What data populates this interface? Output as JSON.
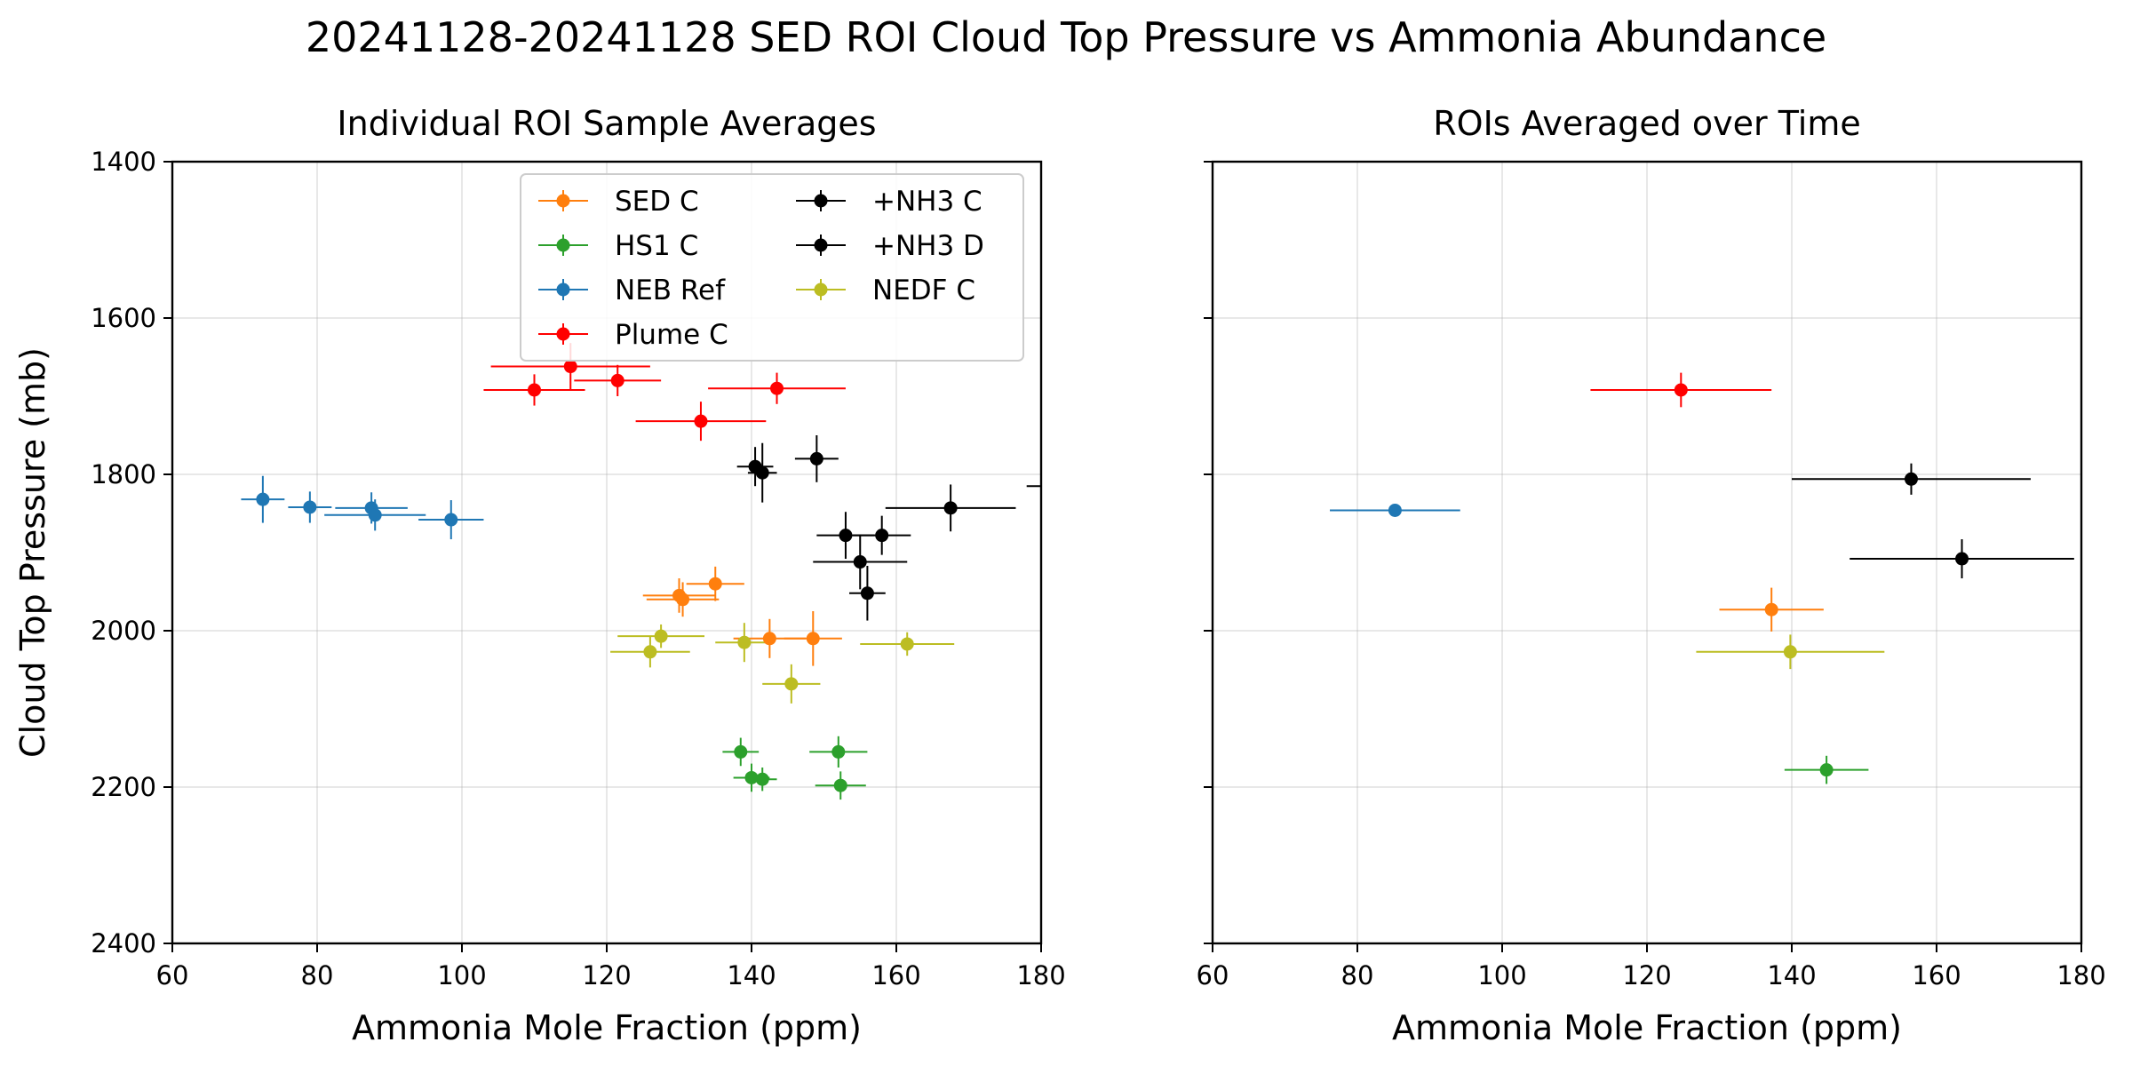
{
  "figure_title": "20241128-20241128 SED ROI Cloud Top Pressure vs Ammonia Abundance",
  "chart_data": [
    {
      "type": "scatter",
      "title": "Individual ROI Sample Averages",
      "xlabel": "Ammonia Mole Fraction (ppm)",
      "ylabel": "Cloud Top Pressure (mb)",
      "xlim": [
        60,
        180
      ],
      "ylim": [
        2400,
        1400
      ],
      "y_inverted": true,
      "xticks": [
        60,
        80,
        100,
        120,
        140,
        160,
        180
      ],
      "yticks": [
        1400,
        1600,
        1800,
        2000,
        2200,
        2400
      ],
      "grid": true,
      "error_bars": true,
      "legend": {
        "placement": "top-right",
        "columns": 2
      },
      "legend_entries": [
        "SED C",
        "HS1 C",
        "NEB Ref",
        "Plume C",
        "+NH3 C",
        "+NH3 D",
        "NEDF C"
      ],
      "series": [
        {
          "name": "SED C",
          "color": "#ff7f0e",
          "points": [
            {
              "x": 130,
              "y": 1955,
              "xerr": 5,
              "yerr": 22
            },
            {
              "x": 130.5,
              "y": 1960,
              "xerr": 5,
              "yerr": 22
            },
            {
              "x": 135,
              "y": 1940,
              "xerr": 4,
              "yerr": 22
            },
            {
              "x": 142.5,
              "y": 2010,
              "xerr": 5,
              "yerr": 25
            },
            {
              "x": 148.5,
              "y": 2010,
              "xerr": 4,
              "yerr": 35
            }
          ]
        },
        {
          "name": "HS1 C",
          "color": "#2ca02c",
          "points": [
            {
              "x": 138.5,
              "y": 2155,
              "xerr": 2.5,
              "yerr": 18
            },
            {
              "x": 140,
              "y": 2188,
              "xerr": 2.5,
              "yerr": 18
            },
            {
              "x": 141.5,
              "y": 2190,
              "xerr": 2,
              "yerr": 15
            },
            {
              "x": 152,
              "y": 2155,
              "xerr": 4,
              "yerr": 20
            },
            {
              "x": 152.3,
              "y": 2198,
              "xerr": 3.5,
              "yerr": 18
            }
          ]
        },
        {
          "name": "NEB Ref",
          "color": "#1f77b4",
          "points": [
            {
              "x": 72.5,
              "y": 1832,
              "xerr": 3,
              "yerr": 30
            },
            {
              "x": 79,
              "y": 1842,
              "xerr": 3,
              "yerr": 20
            },
            {
              "x": 87.5,
              "y": 1843,
              "xerr": 5,
              "yerr": 20
            },
            {
              "x": 88,
              "y": 1852,
              "xerr": 7,
              "yerr": 20
            },
            {
              "x": 98.5,
              "y": 1858,
              "xerr": 4.5,
              "yerr": 25
            }
          ]
        },
        {
          "name": "Plume C",
          "color": "#ff0000",
          "points": [
            {
              "x": 110,
              "y": 1692,
              "xerr": 7,
              "yerr": 20
            },
            {
              "x": 115,
              "y": 1662,
              "xerr": 11,
              "yerr": 30
            },
            {
              "x": 121.5,
              "y": 1680,
              "xerr": 6,
              "yerr": 20
            },
            {
              "x": 133,
              "y": 1732,
              "xerr": 9,
              "yerr": 25
            },
            {
              "x": 143.5,
              "y": 1690,
              "xerr": 9.5,
              "yerr": 20
            }
          ]
        },
        {
          "name": "+NH3 C",
          "color": "#000000",
          "points": [
            {
              "x": 140.5,
              "y": 1790,
              "xerr": 2.5,
              "yerr": 25
            },
            {
              "x": 141.5,
              "y": 1798,
              "xerr": 2,
              "yerr": 38
            },
            {
              "x": 149,
              "y": 1780,
              "xerr": 3,
              "yerr": 30
            },
            {
              "x": 153,
              "y": 1878,
              "xerr": 4,
              "yerr": 30
            },
            {
              "x": 155,
              "y": 1912,
              "xerr": 6.5,
              "yerr": 35
            }
          ]
        },
        {
          "name": "+NH3 D",
          "color": "#000000",
          "points": [
            {
              "x": 156,
              "y": 1952,
              "xerr": 2.5,
              "yerr": 35
            },
            {
              "x": 158,
              "y": 1878,
              "xerr": 4,
              "yerr": 25
            },
            {
              "x": 167.5,
              "y": 1843,
              "xerr": 9,
              "yerr": 30
            },
            {
              "x": 185,
              "y": 1815,
              "xerr": 7,
              "yerr": 0
            }
          ]
        },
        {
          "name": "NEDF C",
          "color": "#bcbd22",
          "points": [
            {
              "x": 126,
              "y": 2027,
              "xerr": 5.5,
              "yerr": 20
            },
            {
              "x": 127.5,
              "y": 2007,
              "xerr": 6,
              "yerr": 15
            },
            {
              "x": 139,
              "y": 2015,
              "xerr": 4,
              "yerr": 25
            },
            {
              "x": 145.5,
              "y": 2068,
              "xerr": 4,
              "yerr": 25
            },
            {
              "x": 161.5,
              "y": 2017,
              "xerr": 6.5,
              "yerr": 15
            }
          ]
        }
      ]
    },
    {
      "type": "scatter",
      "title": "ROIs Averaged over Time",
      "xlabel": "Ammonia Mole Fraction (ppm)",
      "ylabel": "",
      "xlim": [
        60,
        180
      ],
      "ylim": [
        2400,
        1400
      ],
      "y_inverted": true,
      "xticks": [
        60,
        80,
        100,
        120,
        140,
        160,
        180
      ],
      "yticks": [
        1400,
        1600,
        1800,
        2000,
        2200,
        2400
      ],
      "y_ticklabels_shown": false,
      "grid": true,
      "error_bars": true,
      "series": [
        {
          "name": "Plume C",
          "color": "#ff0000",
          "points": [
            {
              "x": 124.7,
              "y": 1692,
              "xerr": 12.5,
              "yerr": 22
            }
          ]
        },
        {
          "name": "NEB Ref",
          "color": "#1f77b4",
          "points": [
            {
              "x": 85.2,
              "y": 1846,
              "xerr": 9,
              "yerr": 0
            }
          ]
        },
        {
          "name": "+NH3 C",
          "color": "#000000",
          "points": [
            {
              "x": 156.5,
              "y": 1806,
              "xerr": 16.5,
              "yerr": 20
            }
          ]
        },
        {
          "name": "+NH3 D",
          "color": "#000000",
          "points": [
            {
              "x": 163.5,
              "y": 1908,
              "xerr": 15.5,
              "yerr": 25
            }
          ]
        },
        {
          "name": "SED C",
          "color": "#ff7f0e",
          "points": [
            {
              "x": 137.2,
              "y": 1973,
              "xerr": 7.2,
              "yerr": 28
            }
          ]
        },
        {
          "name": "NEDF C",
          "color": "#bcbd22",
          "points": [
            {
              "x": 139.8,
              "y": 2027,
              "xerr": 13,
              "yerr": 22
            }
          ]
        },
        {
          "name": "HS1 C",
          "color": "#2ca02c",
          "points": [
            {
              "x": 144.8,
              "y": 2178,
              "xerr": 5.8,
              "yerr": 18
            }
          ]
        }
      ]
    }
  ]
}
